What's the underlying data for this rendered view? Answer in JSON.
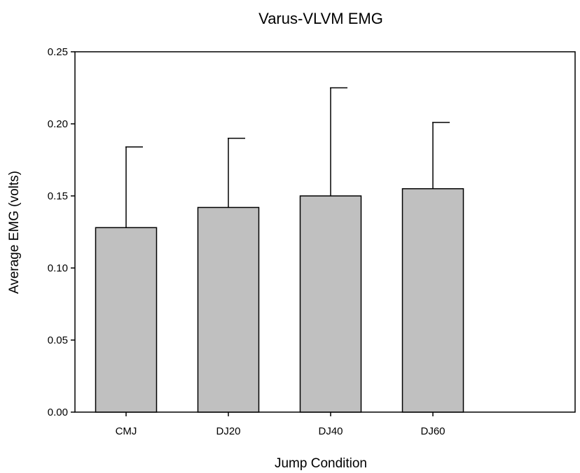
{
  "chart_data": {
    "type": "bar",
    "title": "Varus-VLVM EMG",
    "xlabel": "Jump Condition",
    "ylabel": "Average EMG (volts)",
    "categories": [
      "CMJ",
      "DJ20",
      "DJ40",
      "DJ60"
    ],
    "values": [
      0.128,
      0.142,
      0.15,
      0.155
    ],
    "error_upper": [
      0.184,
      0.19,
      0.225,
      0.201
    ],
    "ylim": [
      0,
      0.25
    ],
    "yticks": [
      "0.00",
      "0.05",
      "0.10",
      "0.15",
      "0.20",
      "0.25"
    ],
    "grid": false,
    "bar_color": "#c0c0c0",
    "edge_color": "#000000"
  }
}
